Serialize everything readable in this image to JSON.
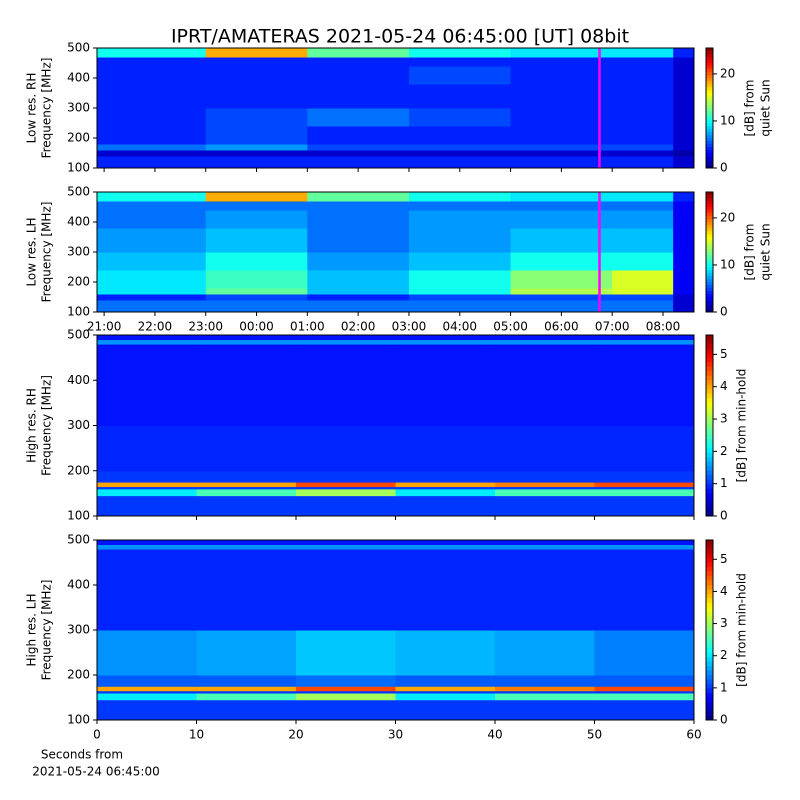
{
  "title": "IPRT/AMATERAS 2021-05-24 06:45:00 [UT]   08bit",
  "chart_data": [
    {
      "type": "heatmap",
      "ylabel": [
        "Low res. RH",
        "Frequency [MHz]"
      ],
      "clabel": [
        "[dB] from",
        "quiet Sun"
      ],
      "xlim": [
        -0.14,
        11.61
      ],
      "ylim": [
        100,
        500
      ],
      "yticks": [
        100,
        200,
        300,
        400,
        500
      ],
      "clim": [
        0,
        25.5
      ],
      "cticks": [
        0,
        10,
        20
      ],
      "vlines": [
        {
          "value": 9.75,
          "color": "#ff00ff"
        }
      ],
      "x": [
        -0.14,
        2,
        4,
        6,
        8,
        10,
        11.2,
        11.61
      ],
      "y": [
        100,
        140,
        160,
        180,
        240,
        300,
        380,
        440,
        470,
        500
      ],
      "z": [
        [
          4,
          4,
          4,
          4,
          4,
          4,
          2
        ],
        [
          2,
          2,
          2,
          2,
          2,
          2,
          1
        ],
        [
          6,
          7,
          5,
          5,
          5,
          5,
          2
        ],
        [
          4,
          5,
          4,
          4,
          4,
          4,
          2
        ],
        [
          4,
          5,
          6,
          5,
          4,
          4,
          2
        ],
        [
          4,
          4,
          4,
          4,
          4,
          4,
          2
        ],
        [
          4,
          4,
          4,
          5,
          4,
          4,
          2
        ],
        [
          4,
          4,
          4,
          4,
          4,
          4,
          2
        ],
        [
          10,
          18,
          12,
          10,
          9,
          9,
          4
        ]
      ]
    },
    {
      "type": "heatmap",
      "ylabel": [
        "Low res. LH",
        "Frequency [MHz]"
      ],
      "clabel": [
        "[dB] from",
        "quiet Sun"
      ],
      "xlim": [
        -0.14,
        11.61
      ],
      "ylim": [
        100,
        500
      ],
      "yticks": [
        100,
        200,
        300,
        400,
        500
      ],
      "xticks": [
        {
          "value": 0,
          "label": "21:00"
        },
        {
          "value": 1,
          "label": "22:00"
        },
        {
          "value": 2,
          "label": "23:00"
        },
        {
          "value": 3,
          "label": "00:00"
        },
        {
          "value": 4,
          "label": "01:00"
        },
        {
          "value": 5,
          "label": "02:00"
        },
        {
          "value": 6,
          "label": "03:00"
        },
        {
          "value": 7,
          "label": "04:00"
        },
        {
          "value": 8,
          "label": "05:00"
        },
        {
          "value": 9,
          "label": "06:00"
        },
        {
          "value": 10,
          "label": "07:00"
        },
        {
          "value": 11,
          "label": "08:00"
        }
      ],
      "clim": [
        0,
        25.5
      ],
      "cticks": [
        0,
        10,
        20
      ],
      "vlines": [
        {
          "value": 9.75,
          "color": "#ff00ff"
        }
      ],
      "x": [
        -0.14,
        2,
        4,
        6,
        8,
        10,
        11.2,
        11.61
      ],
      "y": [
        100,
        140,
        160,
        180,
        240,
        300,
        380,
        440,
        470,
        500
      ],
      "z": [
        [
          6,
          6,
          6,
          6,
          6,
          6,
          2
        ],
        [
          4,
          5,
          4,
          5,
          5,
          5,
          2
        ],
        [
          9,
          12,
          8,
          10,
          14,
          15,
          3
        ],
        [
          9,
          11,
          8,
          10,
          13,
          15,
          3
        ],
        [
          8,
          10,
          7,
          8,
          10,
          10,
          3
        ],
        [
          7,
          8,
          6,
          7,
          8,
          8,
          3
        ],
        [
          6,
          7,
          6,
          7,
          7,
          7,
          3
        ],
        [
          6,
          6,
          6,
          6,
          6,
          6,
          3
        ],
        [
          10,
          18,
          12,
          10,
          9,
          9,
          4
        ]
      ]
    },
    {
      "type": "heatmap",
      "ylabel": [
        "High res. RH",
        "Frequency [MHz]"
      ],
      "clabel": [
        "[dB] from min-hold"
      ],
      "xlim": [
        0,
        60
      ],
      "ylim": [
        100,
        500
      ],
      "yticks": [
        100,
        200,
        300,
        400,
        500
      ],
      "clim": [
        0,
        5.6
      ],
      "cticks": [
        0,
        1,
        2,
        3,
        4,
        5
      ],
      "x": [
        0,
        10,
        20,
        30,
        40,
        50,
        60
      ],
      "y": [
        100,
        145,
        160,
        165,
        175,
        200,
        300,
        480,
        490,
        500
      ],
      "z": [
        [
          1,
          1,
          1,
          1,
          1,
          1
        ],
        [
          2,
          2.5,
          3,
          2,
          2.5,
          2.5
        ],
        [
          1,
          1,
          1,
          1,
          1,
          1
        ],
        [
          4,
          4,
          4.5,
          4,
          4.2,
          4.5
        ],
        [
          1,
          1,
          1,
          1,
          1,
          1
        ],
        [
          0.9,
          0.9,
          0.9,
          0.9,
          0.9,
          0.9
        ],
        [
          0.8,
          0.8,
          0.8,
          0.8,
          0.8,
          0.8
        ],
        [
          1.5,
          1.5,
          1.5,
          1.5,
          1.5,
          1.5
        ],
        [
          0.8,
          0.8,
          0.8,
          0.8,
          0.8,
          0.8
        ]
      ]
    },
    {
      "type": "heatmap",
      "ylabel": [
        "High res. LH",
        "Frequency [MHz]"
      ],
      "clabel": [
        "[dB] from min-hold"
      ],
      "xlabel": [
        "Seconds from",
        "2021-05-24 06:45:00"
      ],
      "xlim": [
        0,
        60
      ],
      "ylim": [
        100,
        500
      ],
      "yticks": [
        100,
        200,
        300,
        400,
        500
      ],
      "xticks": [
        0,
        10,
        20,
        30,
        40,
        50,
        60
      ],
      "clim": [
        0,
        5.6
      ],
      "cticks": [
        0,
        1,
        2,
        3,
        4,
        5
      ],
      "x": [
        0,
        10,
        20,
        30,
        40,
        50,
        60
      ],
      "y": [
        100,
        145,
        160,
        165,
        175,
        200,
        300,
        480,
        490,
        500
      ],
      "z": [
        [
          1,
          1,
          1,
          1,
          1,
          1
        ],
        [
          2,
          2.5,
          3,
          2,
          2.5,
          2.5
        ],
        [
          1,
          1,
          1,
          1,
          1,
          1
        ],
        [
          4,
          4,
          4.5,
          4,
          4.2,
          4.5
        ],
        [
          1.2,
          1.2,
          1.3,
          1.2,
          1.2,
          1.2
        ],
        [
          1.5,
          1.6,
          1.8,
          1.7,
          1.6,
          1.4
        ],
        [
          0.9,
          0.9,
          0.9,
          0.9,
          0.9,
          0.9
        ],
        [
          1.5,
          1.5,
          1.5,
          1.5,
          1.5,
          1.5
        ],
        [
          0.8,
          0.8,
          0.8,
          0.8,
          0.8,
          0.8
        ]
      ]
    }
  ]
}
